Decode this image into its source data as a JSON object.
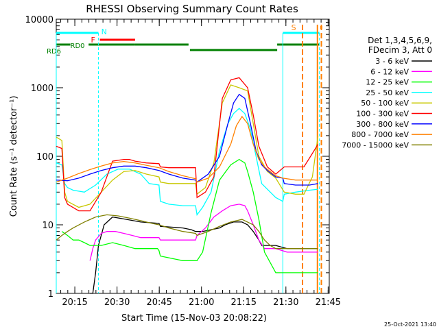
{
  "chart_data": {
    "type": "line",
    "title": "RHESSI Observing Summary Count Rates",
    "xlabel": "Start Time (15-Nov-03 20:08:22)",
    "ylabel": "Count Rate (s⁻¹ detector⁻¹)",
    "yscale": "log",
    "ylim": [
      1,
      10000
    ],
    "xlim_minutes_after_start": [
      0,
      97
    ],
    "x_tick_labels": [
      "20:15",
      "20:30",
      "20:45",
      "21:00",
      "21:15",
      "21:30",
      "21:45"
    ],
    "x_tick_minutes": [
      6.6,
      21.6,
      36.6,
      51.6,
      66.6,
      81.6,
      96.6
    ],
    "y_tick_labels": [
      "1",
      "10",
      "100",
      "1000",
      "10000"
    ],
    "y_tick_values": [
      1,
      10,
      100,
      1000,
      10000
    ],
    "footer": "25-Oct-2021 13:40",
    "legend_header": [
      "Det 1,3,4,5,6,9,",
      "FDecim 3, Att 0"
    ],
    "flag_labels": {
      "saa": "S",
      "night": "N",
      "flare": "F",
      "rd0": "RD0",
      "rd6": "RD6"
    },
    "series": [
      {
        "name": "3 - 6 keV",
        "color": "#000000",
        "x": [
          12,
          13,
          14,
          15,
          17,
          20,
          25,
          30,
          36.5,
          37,
          45,
          48,
          49.5,
          50,
          52,
          55,
          58,
          60,
          63,
          66,
          68,
          70,
          72,
          73,
          78,
          82,
          90,
          93
        ],
        "y": [
          1,
          1,
          2,
          5,
          10,
          13,
          12,
          11,
          10.5,
          9.5,
          9,
          8.5,
          8,
          8,
          8,
          8.5,
          9,
          10,
          11,
          11,
          10,
          8,
          6,
          5,
          5,
          4.5,
          4.5,
          4.5
        ]
      },
      {
        "name": "6 - 12 keV",
        "color": "#ff00ff",
        "x": [
          12,
          13,
          14,
          16,
          18,
          21,
          24,
          27,
          30,
          33,
          36.5,
          37,
          45,
          49.5,
          50,
          53,
          56,
          59,
          62,
          65,
          67,
          68,
          70,
          72,
          74,
          78,
          82,
          90,
          93
        ],
        "y": [
          3,
          4.5,
          6,
          7.5,
          8,
          8,
          7.5,
          7,
          6.5,
          6.5,
          6.5,
          6,
          6,
          6,
          7,
          9,
          13,
          16,
          19,
          20,
          19,
          16,
          10,
          6,
          4.5,
          4.5,
          4,
          4,
          4
        ]
      },
      {
        "name": "12 - 25 keV",
        "color": "#00ff00",
        "x": [
          2,
          4,
          6,
          8,
          10,
          12,
          16,
          20,
          24,
          28,
          32,
          36,
          36.5,
          37,
          45,
          49.5,
          50,
          52,
          55,
          58,
          62,
          65,
          67,
          68,
          70,
          72,
          74,
          78,
          82,
          90,
          93
        ],
        "y": [
          8,
          7,
          6,
          6,
          5.5,
          5,
          5,
          5.5,
          5,
          4.5,
          4.5,
          4.5,
          4.2,
          3.5,
          3,
          3,
          3,
          4,
          15,
          45,
          75,
          90,
          80,
          60,
          30,
          12,
          4,
          2,
          2,
          2,
          2
        ]
      },
      {
        "name": "25 - 50 keV",
        "color": "#00ffff",
        "x": [
          0,
          2,
          3,
          4,
          6,
          10,
          14,
          18,
          22,
          26,
          30,
          33,
          36.5,
          37,
          40,
          45,
          49.5,
          50,
          52,
          55,
          58,
          61,
          63,
          65,
          67,
          69,
          71,
          73,
          78,
          80.5,
          81,
          85,
          90,
          93
        ],
        "y": [
          80,
          75,
          40,
          35,
          32,
          30,
          38,
          55,
          65,
          65,
          55,
          40,
          38,
          22,
          20,
          19,
          19,
          14,
          18,
          30,
          120,
          300,
          420,
          500,
          420,
          250,
          100,
          40,
          25,
          22,
          28,
          30,
          32,
          33
        ]
      },
      {
        "name": "50 - 100 keV",
        "color": "#c8c800",
        "x": [
          0,
          2,
          3,
          4,
          8,
          12,
          16,
          20,
          24,
          28,
          32,
          36.5,
          37,
          40,
          45,
          49.5,
          50,
          53,
          56,
          59,
          62,
          65,
          68,
          70,
          72,
          75,
          78,
          81,
          85,
          88,
          91,
          93
        ],
        "y": [
          190,
          170,
          30,
          22,
          18,
          20,
          30,
          45,
          60,
          62,
          55,
          50,
          42,
          40,
          40,
          40,
          28,
          35,
          80,
          600,
          1100,
          1000,
          900,
          300,
          100,
          60,
          48,
          30,
          28,
          28,
          50,
          200
        ]
      },
      {
        "name": "100 - 300 keV",
        "color": "#ff0000",
        "x": [
          0,
          2,
          3,
          4,
          8,
          12,
          16,
          20,
          24,
          26,
          28,
          32,
          36.5,
          37,
          40,
          45,
          49.5,
          50,
          53,
          56,
          59,
          62,
          65,
          68,
          70,
          72,
          75,
          78,
          81,
          85,
          88,
          91,
          93
        ],
        "y": [
          140,
          130,
          25,
          20,
          16,
          16,
          30,
          85,
          90,
          90,
          85,
          80,
          78,
          70,
          68,
          68,
          68,
          25,
          30,
          50,
          700,
          1300,
          1400,
          1000,
          400,
          140,
          70,
          55,
          70,
          70,
          70,
          110,
          150
        ]
      },
      {
        "name": "300 - 800 keV",
        "color": "#0000ff",
        "x": [
          0,
          4,
          8,
          12,
          16,
          20,
          24,
          28,
          32,
          36.5,
          40,
          45,
          49.5,
          50,
          54,
          58,
          61,
          63,
          65,
          67,
          69,
          71,
          73,
          75,
          78,
          80.5,
          81,
          85,
          90,
          93
        ],
        "y": [
          45,
          44,
          48,
          55,
          62,
          68,
          72,
          72,
          68,
          62,
          55,
          48,
          45,
          42,
          55,
          100,
          300,
          600,
          800,
          700,
          300,
          120,
          75,
          62,
          50,
          48,
          40,
          38,
          38,
          40
        ]
      },
      {
        "name": "800 - 7000 keV",
        "color": "#ff8000",
        "x": [
          0,
          4,
          8,
          12,
          16,
          20,
          24,
          28,
          32,
          36.5,
          40,
          45,
          49.5,
          50,
          54,
          58,
          62,
          64,
          66,
          68,
          70,
          72,
          74,
          76,
          78,
          80.5,
          85,
          90,
          93
        ],
        "y": [
          42,
          48,
          56,
          64,
          72,
          80,
          84,
          80,
          74,
          68,
          60,
          52,
          47,
          42,
          48,
          70,
          150,
          280,
          380,
          300,
          150,
          90,
          70,
          60,
          52,
          48,
          45,
          45,
          45
        ]
      },
      {
        "name": "7000 - 15000 keV",
        "color": "#808000",
        "x": [
          0,
          2,
          4,
          6,
          10,
          14,
          18,
          22,
          26,
          30,
          34,
          36.5,
          40,
          45,
          49.5,
          50,
          54,
          58,
          62,
          66,
          70,
          72,
          74,
          76,
          78,
          80.5,
          85,
          90,
          93
        ],
        "y": [
          6,
          7,
          8,
          9,
          11,
          13,
          14,
          13.5,
          12.5,
          11.5,
          10.5,
          10,
          9,
          8,
          7.5,
          7,
          8,
          9.5,
          11,
          12,
          10,
          8,
          6,
          5,
          4.5,
          4.5,
          4.5,
          4.5,
          4.5
        ]
      }
    ]
  }
}
